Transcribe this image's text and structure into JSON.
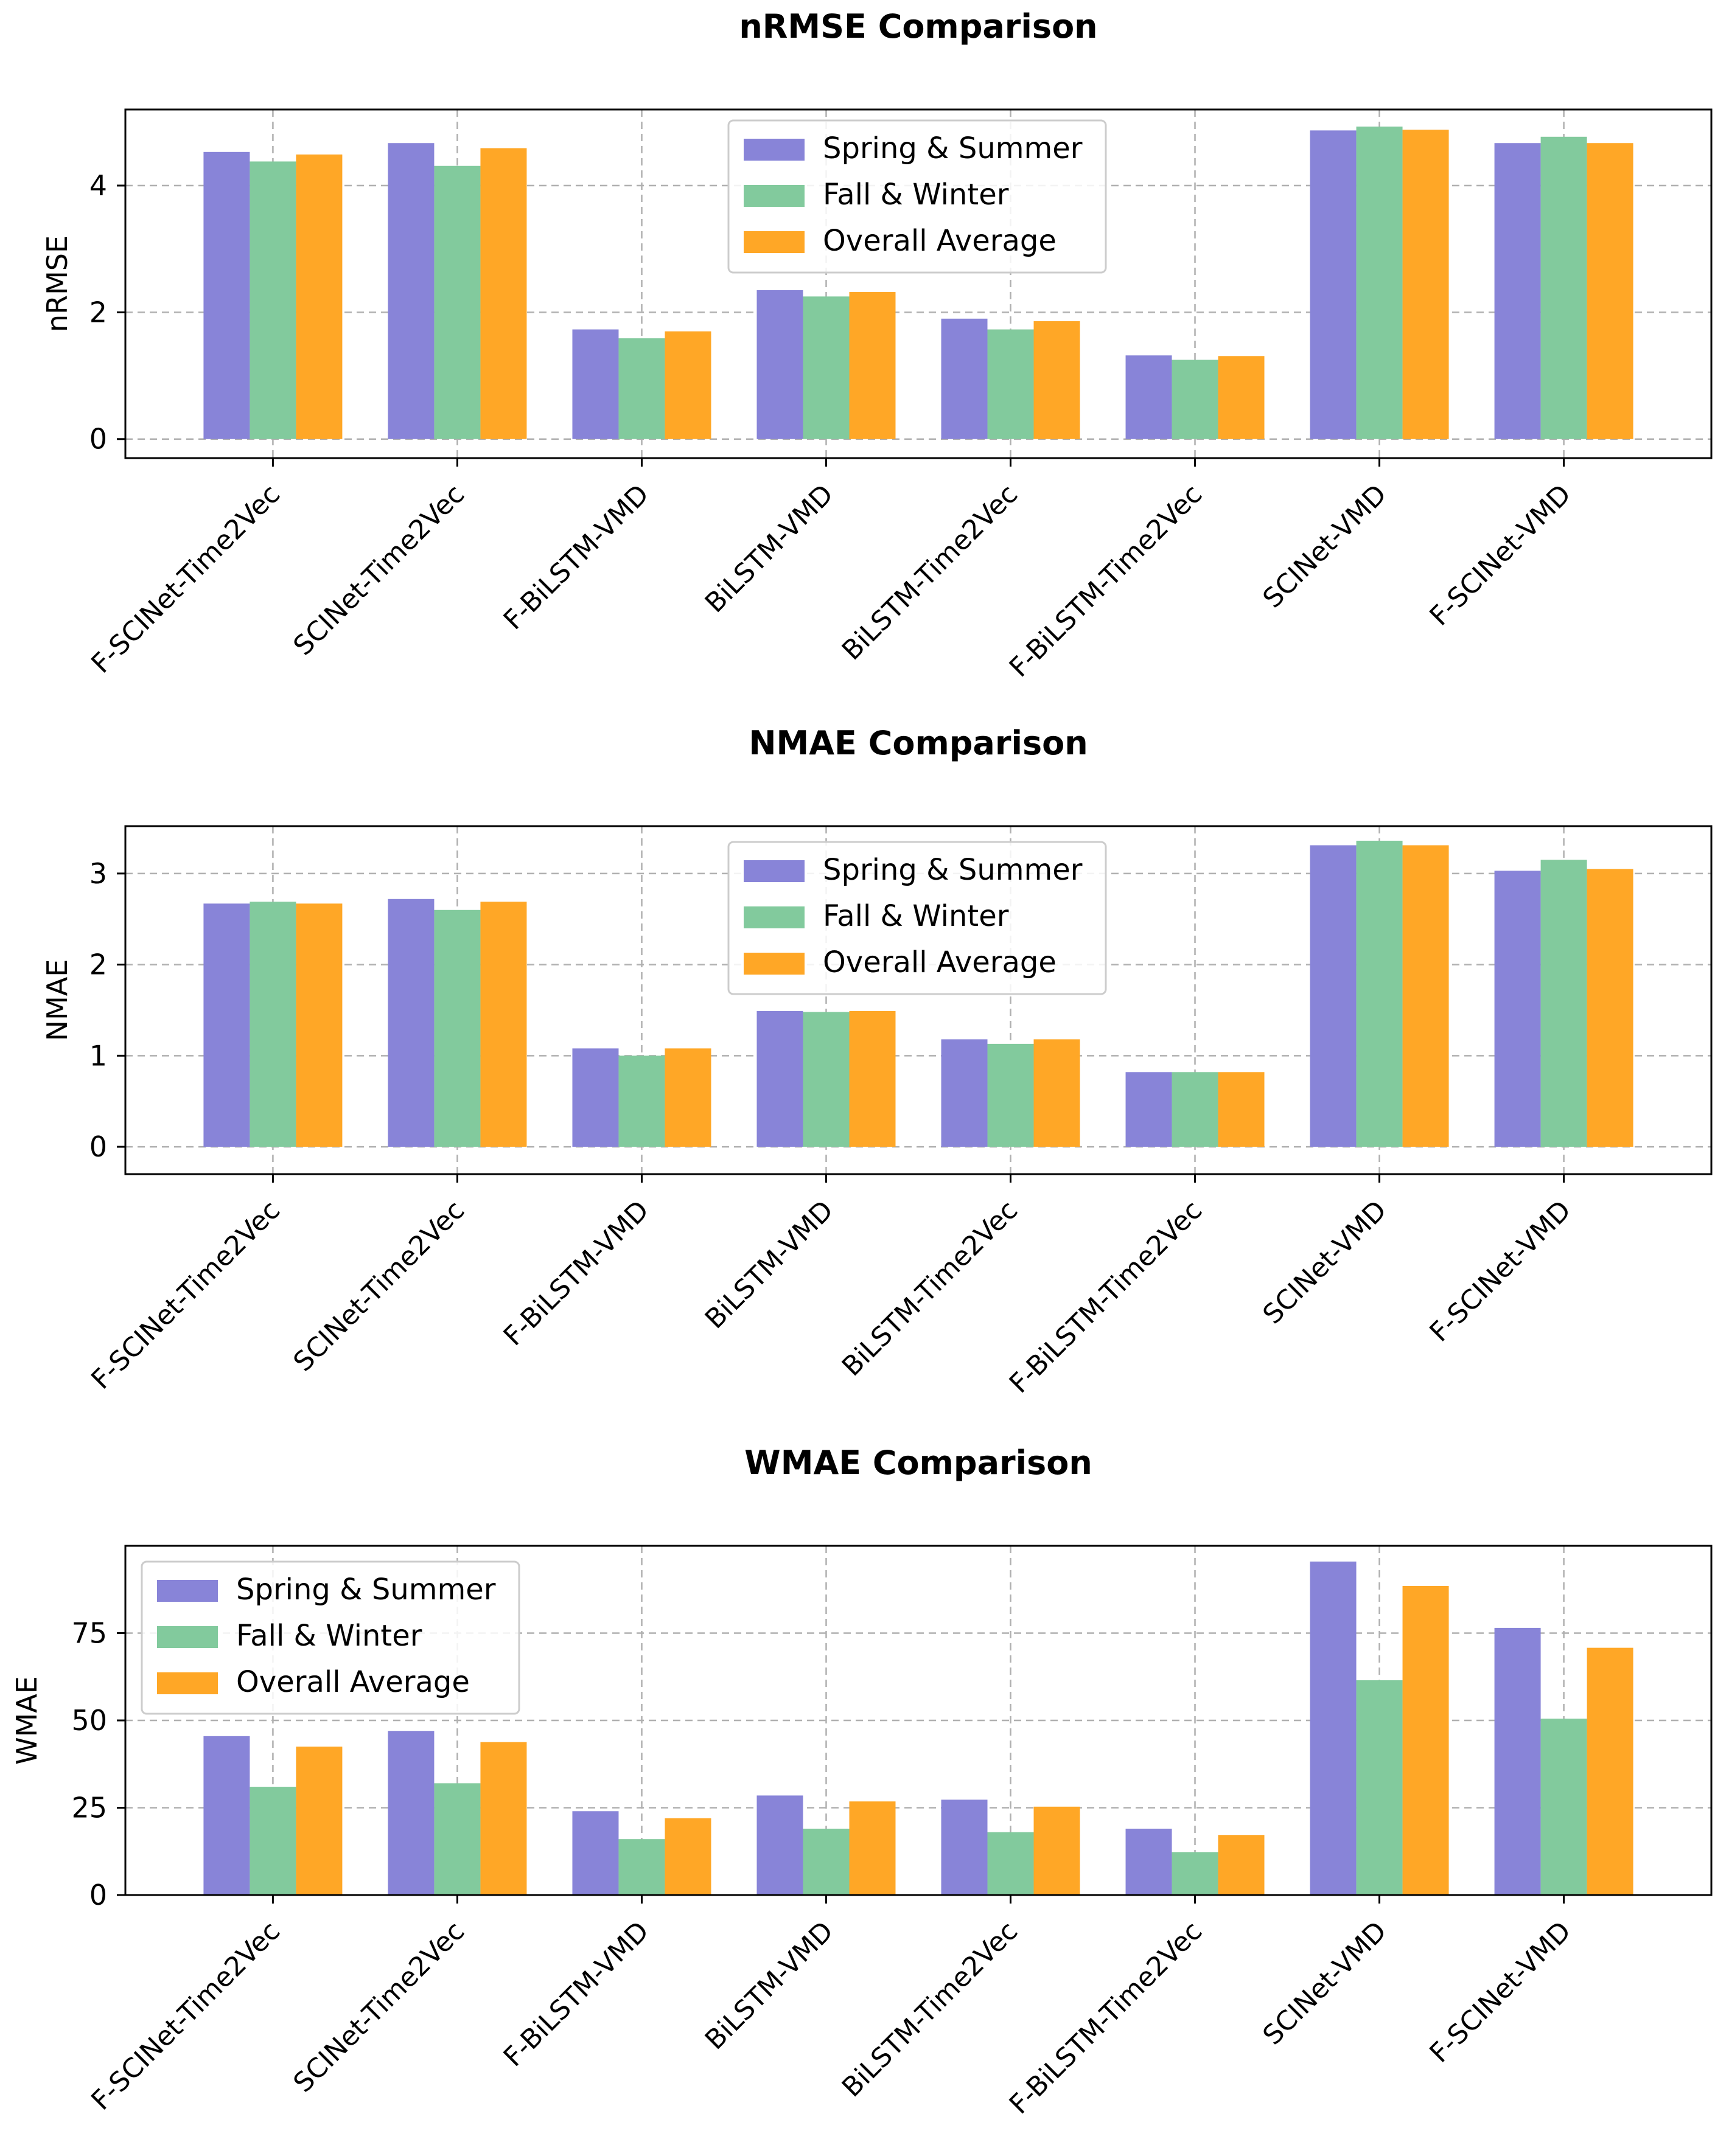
{
  "colors": {
    "spring_summer": "#8884d8",
    "fall_winter": "#82ca9d",
    "overall": "#ffa726",
    "grid": "#b0b0b0",
    "axis": "#000000"
  },
  "chart_data": [
    {
      "type": "bar",
      "title": "nRMSE Comparison",
      "ylabel": "nRMSE",
      "xlabel": "",
      "ylim": [
        -0.3,
        5.2
      ],
      "yticks": [
        0,
        2,
        4
      ],
      "legend_position": "top-center",
      "categories": [
        "F-SCINet-Time2Vec",
        "SCINet-Time2Vec",
        "F-BiLSTM-VMD",
        "BiLSTM-VMD",
        "BiLSTM-Time2Vec",
        "F-BiLSTM-Time2Vec",
        "SCINet-VMD",
        "F-SCINet-VMD"
      ],
      "series": [
        {
          "name": "Spring & Summer",
          "values": [
            4.53,
            4.67,
            1.73,
            2.35,
            1.9,
            1.32,
            4.87,
            4.67
          ]
        },
        {
          "name": "Fall & Winter",
          "values": [
            4.38,
            4.31,
            1.59,
            2.25,
            1.73,
            1.25,
            4.93,
            4.77
          ]
        },
        {
          "name": "Overall Average",
          "values": [
            4.49,
            4.59,
            1.7,
            2.32,
            1.86,
            1.31,
            4.88,
            4.67
          ]
        }
      ]
    },
    {
      "type": "bar",
      "title": "NMAE Comparison",
      "ylabel": "NMAE",
      "xlabel": "",
      "ylim": [
        -0.3,
        3.52
      ],
      "yticks": [
        0,
        1,
        2,
        3
      ],
      "legend_position": "top-center",
      "categories": [
        "F-SCINet-Time2Vec",
        "SCINet-Time2Vec",
        "F-BiLSTM-VMD",
        "BiLSTM-VMD",
        "BiLSTM-Time2Vec",
        "F-BiLSTM-Time2Vec",
        "SCINet-VMD",
        "F-SCINet-VMD"
      ],
      "series": [
        {
          "name": "Spring & Summer",
          "values": [
            2.67,
            2.72,
            1.08,
            1.49,
            1.18,
            0.82,
            3.31,
            3.03
          ]
        },
        {
          "name": "Fall & Winter",
          "values": [
            2.69,
            2.6,
            1.0,
            1.48,
            1.13,
            0.82,
            3.36,
            3.15
          ]
        },
        {
          "name": "Overall Average",
          "values": [
            2.67,
            2.69,
            1.08,
            1.49,
            1.18,
            0.82,
            3.31,
            3.05
          ]
        }
      ]
    },
    {
      "type": "bar",
      "title": "WMAE Comparison",
      "ylabel": "WMAE",
      "xlabel": "",
      "ylim": [
        0,
        100
      ],
      "yticks": [
        0,
        25,
        50,
        75
      ],
      "legend_position": "top-left",
      "categories": [
        "F-SCINet-Time2Vec",
        "SCINet-Time2Vec",
        "F-BiLSTM-VMD",
        "BiLSTM-VMD",
        "BiLSTM-Time2Vec",
        "F-BiLSTM-Time2Vec",
        "SCINet-VMD",
        "F-SCINet-VMD"
      ],
      "series": [
        {
          "name": "Spring & Summer",
          "values": [
            45.5,
            47.0,
            24.0,
            28.5,
            27.3,
            19.0,
            95.5,
            76.5
          ]
        },
        {
          "name": "Fall & Winter",
          "values": [
            31.0,
            32.0,
            16.0,
            19.0,
            18.0,
            12.3,
            61.5,
            50.5
          ]
        },
        {
          "name": "Overall Average",
          "values": [
            42.5,
            43.8,
            22.0,
            26.8,
            25.3,
            17.2,
            88.5,
            70.8
          ]
        }
      ]
    }
  ]
}
